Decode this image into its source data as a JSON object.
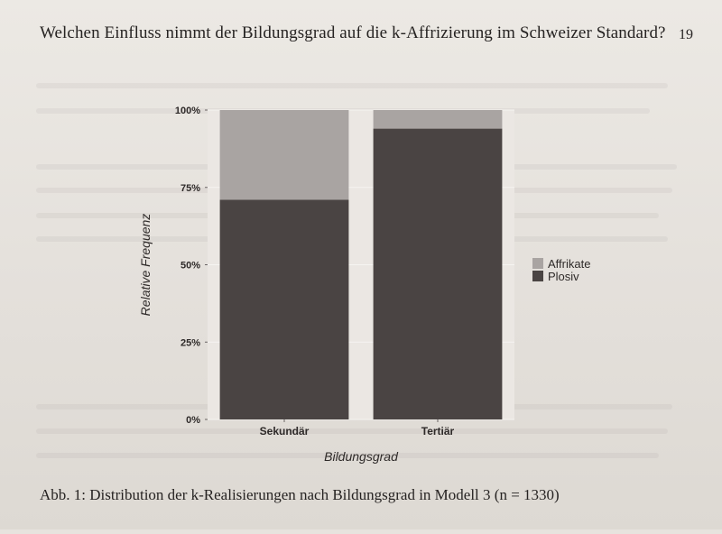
{
  "page": {
    "header_title": "Welchen Einfluss nimmt der Bildungsgrad auf die k-Affrizierung im Schweizer Standard?",
    "page_number": "19",
    "caption": "Abb. 1: Distribution der k-Realisierungen nach Bildungsgrad in Modell 3 (n = 1330)"
  },
  "chart_data": {
    "type": "bar",
    "stacked": true,
    "normalized": true,
    "categories": [
      "Sekundär",
      "Tertiär"
    ],
    "series": [
      {
        "name": "Plosiv",
        "values": [
          0.71,
          0.94
        ],
        "color": "#4a4443"
      },
      {
        "name": "Affrikate",
        "values": [
          0.29,
          0.06
        ],
        "color": "#a9a4a2"
      }
    ],
    "xlabel": "Bildungsgrad",
    "ylabel": "Relative Frequenz",
    "ylim": [
      0,
      1
    ],
    "yticks": [
      0,
      0.25,
      0.5,
      0.75,
      1
    ],
    "ytick_labels": [
      "0%",
      "25%",
      "50%",
      "75%",
      "100%"
    ],
    "legend": {
      "position": "right",
      "entries": [
        "Affrikate",
        "Plosiv"
      ]
    },
    "panel_background": "#ebe7e3",
    "grid": true
  }
}
